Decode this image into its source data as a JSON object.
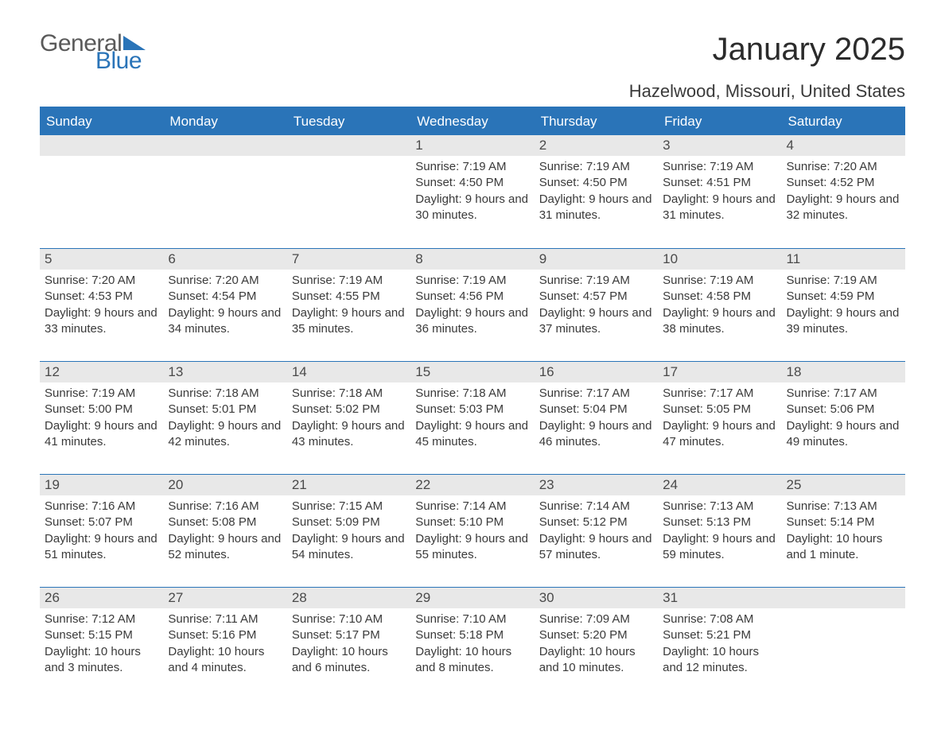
{
  "logo": {
    "part1": "General",
    "part2": "Blue",
    "color_text": "#5a5a5a",
    "color_accent": "#2a74b8"
  },
  "title": "January 2025",
  "location": "Hazelwood, Missouri, United States",
  "colors": {
    "header_bg": "#2a74b8",
    "header_text": "#ffffff",
    "daynum_bg": "#e8e8e8",
    "daynum_text": "#4a4a4a",
    "body_text": "#3a3a3a",
    "rule": "#2a74b8"
  },
  "weekdays": [
    "Sunday",
    "Monday",
    "Tuesday",
    "Wednesday",
    "Thursday",
    "Friday",
    "Saturday"
  ],
  "labels": {
    "sunrise": "Sunrise:",
    "sunset": "Sunset:",
    "daylight": "Daylight:"
  },
  "weeks": [
    [
      null,
      null,
      null,
      {
        "n": "1",
        "sunrise": "7:19 AM",
        "sunset": "4:50 PM",
        "daylight": "9 hours and 30 minutes."
      },
      {
        "n": "2",
        "sunrise": "7:19 AM",
        "sunset": "4:50 PM",
        "daylight": "9 hours and 31 minutes."
      },
      {
        "n": "3",
        "sunrise": "7:19 AM",
        "sunset": "4:51 PM",
        "daylight": "9 hours and 31 minutes."
      },
      {
        "n": "4",
        "sunrise": "7:20 AM",
        "sunset": "4:52 PM",
        "daylight": "9 hours and 32 minutes."
      }
    ],
    [
      {
        "n": "5",
        "sunrise": "7:20 AM",
        "sunset": "4:53 PM",
        "daylight": "9 hours and 33 minutes."
      },
      {
        "n": "6",
        "sunrise": "7:20 AM",
        "sunset": "4:54 PM",
        "daylight": "9 hours and 34 minutes."
      },
      {
        "n": "7",
        "sunrise": "7:19 AM",
        "sunset": "4:55 PM",
        "daylight": "9 hours and 35 minutes."
      },
      {
        "n": "8",
        "sunrise": "7:19 AM",
        "sunset": "4:56 PM",
        "daylight": "9 hours and 36 minutes."
      },
      {
        "n": "9",
        "sunrise": "7:19 AM",
        "sunset": "4:57 PM",
        "daylight": "9 hours and 37 minutes."
      },
      {
        "n": "10",
        "sunrise": "7:19 AM",
        "sunset": "4:58 PM",
        "daylight": "9 hours and 38 minutes."
      },
      {
        "n": "11",
        "sunrise": "7:19 AM",
        "sunset": "4:59 PM",
        "daylight": "9 hours and 39 minutes."
      }
    ],
    [
      {
        "n": "12",
        "sunrise": "7:19 AM",
        "sunset": "5:00 PM",
        "daylight": "9 hours and 41 minutes."
      },
      {
        "n": "13",
        "sunrise": "7:18 AM",
        "sunset": "5:01 PM",
        "daylight": "9 hours and 42 minutes."
      },
      {
        "n": "14",
        "sunrise": "7:18 AM",
        "sunset": "5:02 PM",
        "daylight": "9 hours and 43 minutes."
      },
      {
        "n": "15",
        "sunrise": "7:18 AM",
        "sunset": "5:03 PM",
        "daylight": "9 hours and 45 minutes."
      },
      {
        "n": "16",
        "sunrise": "7:17 AM",
        "sunset": "5:04 PM",
        "daylight": "9 hours and 46 minutes."
      },
      {
        "n": "17",
        "sunrise": "7:17 AM",
        "sunset": "5:05 PM",
        "daylight": "9 hours and 47 minutes."
      },
      {
        "n": "18",
        "sunrise": "7:17 AM",
        "sunset": "5:06 PM",
        "daylight": "9 hours and 49 minutes."
      }
    ],
    [
      {
        "n": "19",
        "sunrise": "7:16 AM",
        "sunset": "5:07 PM",
        "daylight": "9 hours and 51 minutes."
      },
      {
        "n": "20",
        "sunrise": "7:16 AM",
        "sunset": "5:08 PM",
        "daylight": "9 hours and 52 minutes."
      },
      {
        "n": "21",
        "sunrise": "7:15 AM",
        "sunset": "5:09 PM",
        "daylight": "9 hours and 54 minutes."
      },
      {
        "n": "22",
        "sunrise": "7:14 AM",
        "sunset": "5:10 PM",
        "daylight": "9 hours and 55 minutes."
      },
      {
        "n": "23",
        "sunrise": "7:14 AM",
        "sunset": "5:12 PM",
        "daylight": "9 hours and 57 minutes."
      },
      {
        "n": "24",
        "sunrise": "7:13 AM",
        "sunset": "5:13 PM",
        "daylight": "9 hours and 59 minutes."
      },
      {
        "n": "25",
        "sunrise": "7:13 AM",
        "sunset": "5:14 PM",
        "daylight": "10 hours and 1 minute."
      }
    ],
    [
      {
        "n": "26",
        "sunrise": "7:12 AM",
        "sunset": "5:15 PM",
        "daylight": "10 hours and 3 minutes."
      },
      {
        "n": "27",
        "sunrise": "7:11 AM",
        "sunset": "5:16 PM",
        "daylight": "10 hours and 4 minutes."
      },
      {
        "n": "28",
        "sunrise": "7:10 AM",
        "sunset": "5:17 PM",
        "daylight": "10 hours and 6 minutes."
      },
      {
        "n": "29",
        "sunrise": "7:10 AM",
        "sunset": "5:18 PM",
        "daylight": "10 hours and 8 minutes."
      },
      {
        "n": "30",
        "sunrise": "7:09 AM",
        "sunset": "5:20 PM",
        "daylight": "10 hours and 10 minutes."
      },
      {
        "n": "31",
        "sunrise": "7:08 AM",
        "sunset": "5:21 PM",
        "daylight": "10 hours and 12 minutes."
      },
      null
    ]
  ]
}
